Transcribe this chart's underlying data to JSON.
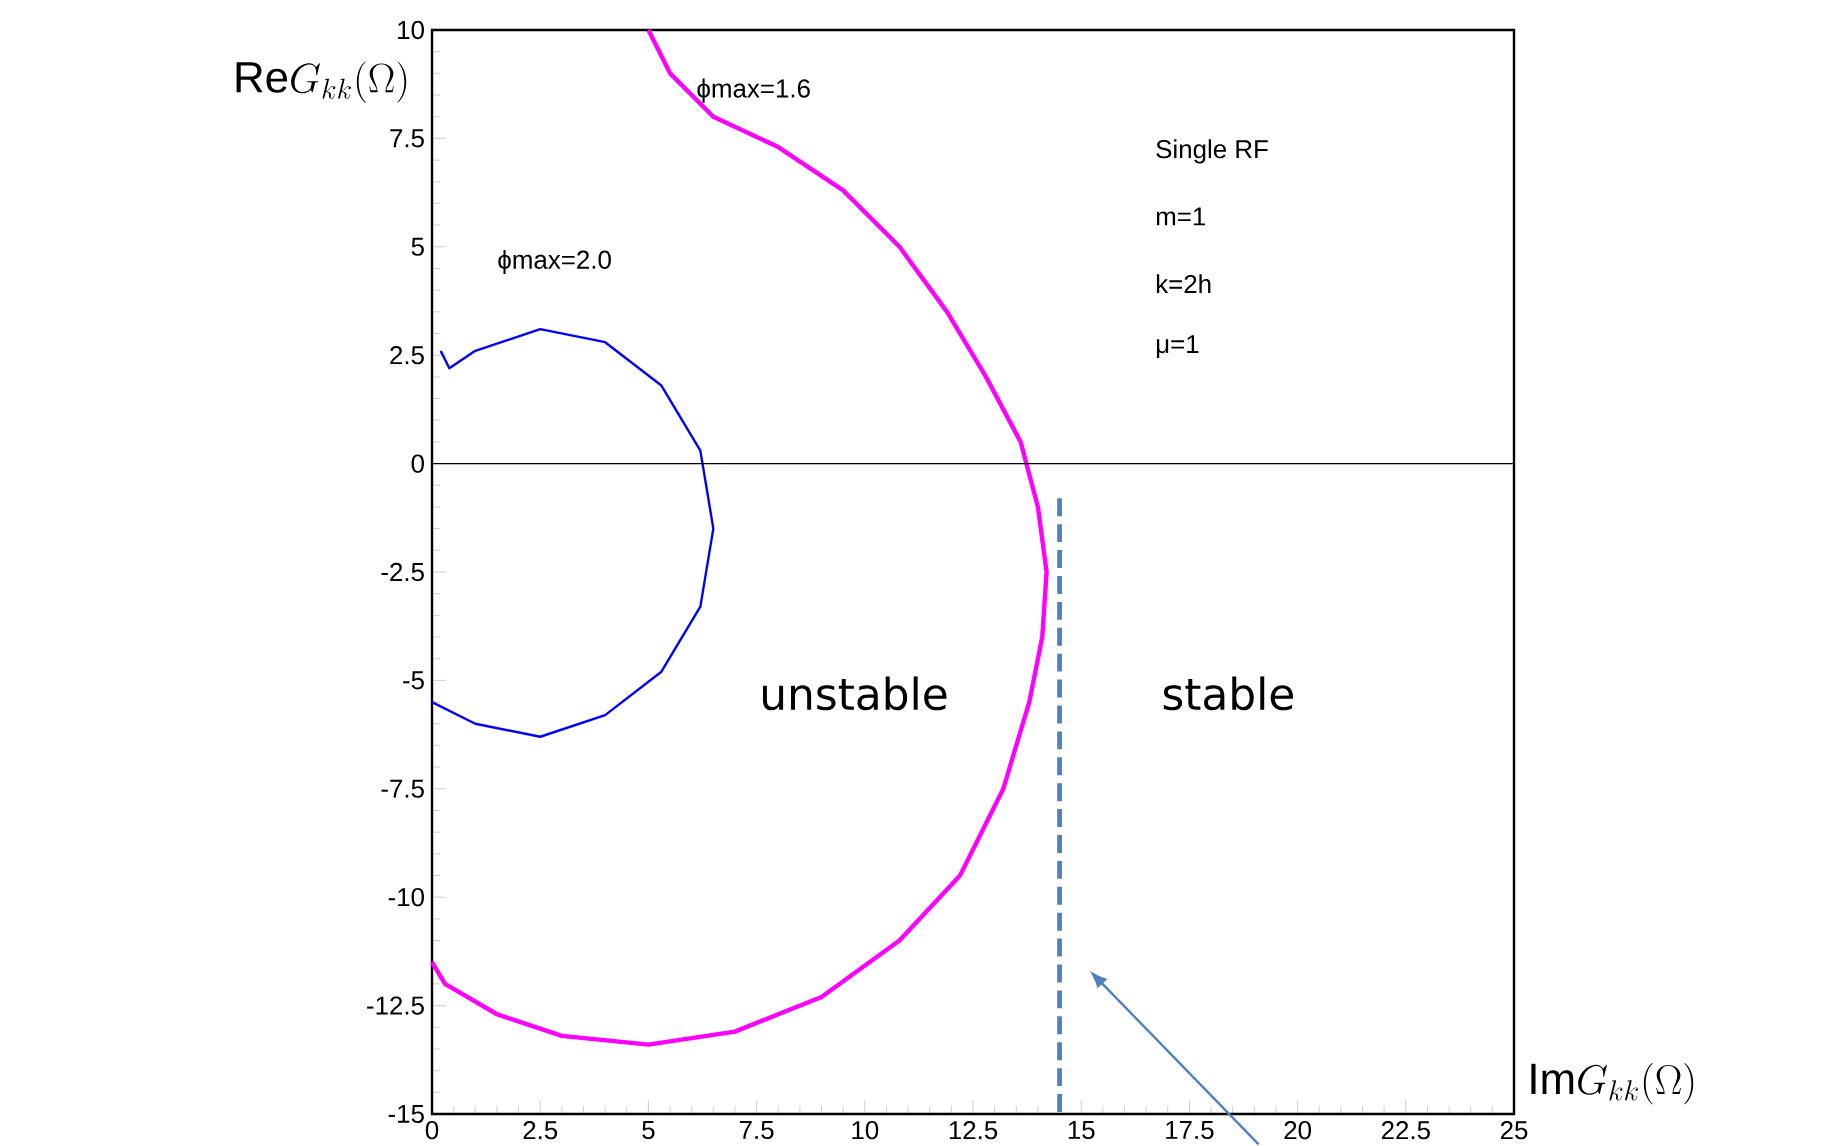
{
  "chart_data": {
    "type": "line",
    "xlabel": "\\mathrm{Im}G_{kk}(\\Omega)",
    "ylabel": "\\mathrm{Re}G_{kk}(\\Omega)",
    "xlim": [
      0,
      25
    ],
    "ylim": [
      -15,
      10
    ],
    "xticks": [
      0,
      2.5,
      5,
      7.5,
      10,
      12.5,
      15,
      17.5,
      20,
      22.5,
      25
    ],
    "yticks": [
      -15,
      -12.5,
      -10,
      -7.5,
      -5,
      -2.5,
      0,
      2.5,
      5,
      7.5,
      10
    ],
    "grid": false,
    "marker": "none",
    "ref_lines": [
      {
        "axis": "y",
        "value": 0,
        "color": "#000000"
      }
    ],
    "series": [
      {
        "color": "#ff00ff",
        "x": [
          5.0,
          5.5,
          6.5,
          8,
          9.5,
          10.8,
          11.9,
          12.8,
          13.6,
          14.0,
          14.2,
          14.1,
          13.8,
          13.2,
          12.2,
          10.8,
          9,
          7,
          5,
          3,
          1.5,
          0.3,
          0
        ],
        "values": [
          10,
          9.0,
          8.0,
          7.3,
          6.3,
          5.0,
          3.5,
          2.0,
          0.5,
          -1,
          -2.5,
          -4,
          -5.5,
          -7.5,
          -9.5,
          -11.0,
          -12.3,
          -13.1,
          -13.4,
          -13.2,
          -12.7,
          -12.0,
          -11.5
        ]
      },
      {
        "color": "#0000ff",
        "x": [
          0.2,
          0.4,
          1,
          2.5,
          4,
          5.3,
          6.2,
          6.5,
          6.2,
          5.3,
          4,
          2.5,
          1,
          0
        ],
        "values": [
          2.6,
          2.2,
          2.6,
          3.1,
          2.8,
          1.8,
          0.3,
          -1.5,
          -3.3,
          -4.8,
          -5.8,
          -6.3,
          -6.0,
          -5.5
        ]
      },
      {
        "color": "#4f81bd",
        "line_style": "dashed",
        "x": [
          14.5,
          14.5
        ],
        "values": [
          -0.8,
          -15
        ]
      }
    ],
    "annotations": [
      {
        "text": "ϕmax=1.6",
        "x": 6.1,
        "y": 8.6
      },
      "ϕmax=2.0",
      "Single RF",
      "m=1",
      "k=2h",
      "μ=1",
      "unstable",
      "stable"
    ]
  }
}
